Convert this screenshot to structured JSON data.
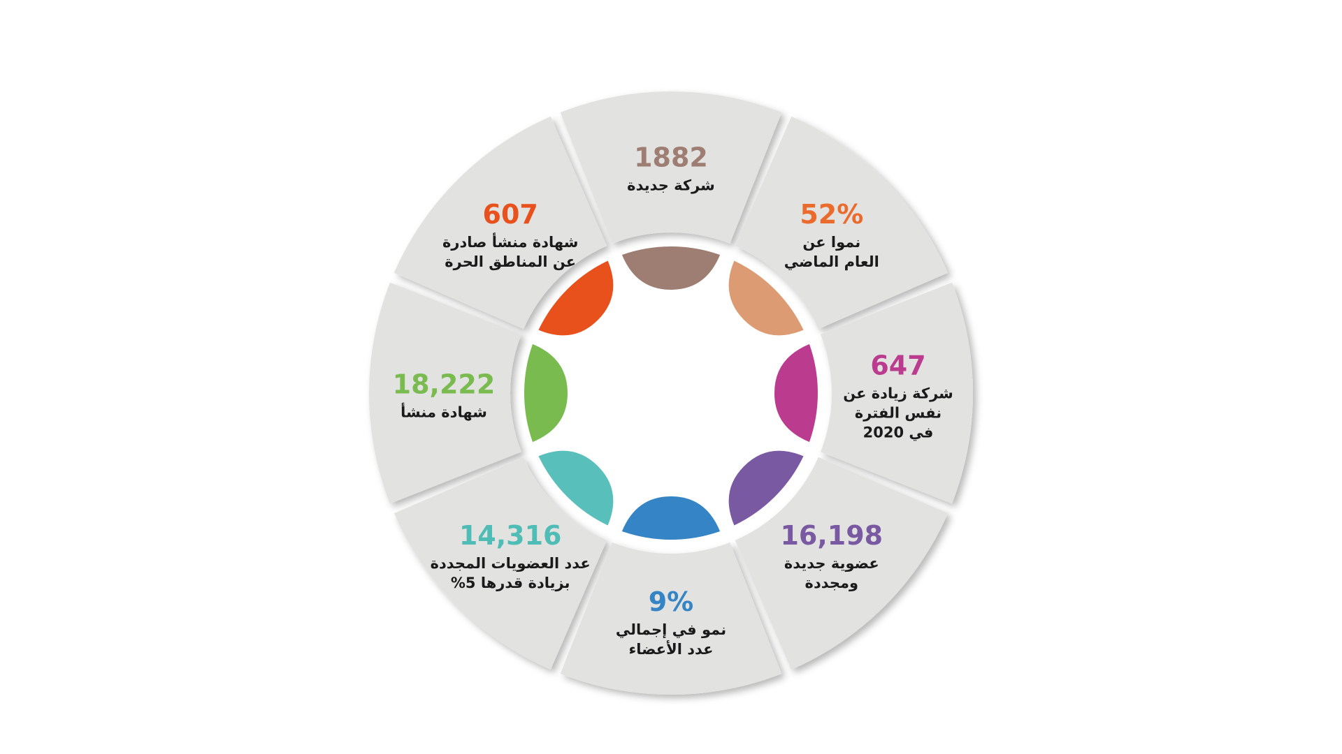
{
  "segments": [
    {
      "id": "new-companies",
      "value": "1882",
      "lines": [
        "شركة جديدة"
      ],
      "color": "#9e7e72",
      "value_color": "#9e7e72"
    },
    {
      "id": "growth-last-year",
      "value": "52%",
      "lines": [
        "نموا عن",
        "العام الماضي"
      ],
      "color": "#dc9b72",
      "value_color": "#ea6b2c"
    },
    {
      "id": "companies-increase",
      "value": "647",
      "lines": [
        "شركة زيادة عن",
        "نفس الفترة",
        "في 2020"
      ],
      "color": "#bb3c8e",
      "value_color": "#bb3c8e"
    },
    {
      "id": "new-renewed-memberships",
      "value": "16,198",
      "lines": [
        "عضوية جديدة",
        "ومجددة"
      ],
      "color": "#7a59a3",
      "value_color": "#7a59a3"
    },
    {
      "id": "total-members-growth",
      "value": "9%",
      "lines": [
        "نمو في إجمالي",
        "عدد الأعضاء"
      ],
      "color": "#3484c6",
      "value_color": "#3484c6"
    },
    {
      "id": "renewed-memberships",
      "value": "14,316",
      "lines": [
        "عدد العضويات المجددة",
        "بزيادة قدرها 5%"
      ],
      "color": "#58bfba",
      "value_color": "#4fbdb6"
    },
    {
      "id": "origin-certificates",
      "value": "18,222",
      "lines": [
        "شهادة منشأ"
      ],
      "color": "#79bb4f",
      "value_color": "#79bb4f"
    },
    {
      "id": "free-zone-certificates",
      "value": "607",
      "lines": [
        "شهادة منشأ صادرة",
        "عن المناطق الحرة"
      ],
      "color": "#e8501c",
      "value_color": "#e8501c"
    }
  ]
}
